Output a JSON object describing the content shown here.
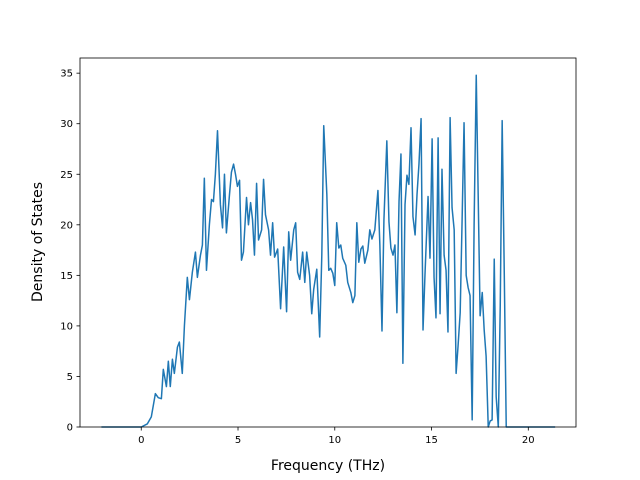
{
  "chart_data": {
    "type": "line",
    "xlabel": "Frequency (THz)",
    "ylabel": "Density of States",
    "color": "#1f77b4",
    "xlim": [
      -3.165,
      22.465
    ],
    "ylim": [
      0,
      36.5
    ],
    "xticks": [
      0,
      5,
      10,
      15,
      20
    ],
    "yticks": [
      0,
      5,
      10,
      15,
      20,
      25,
      30,
      35
    ],
    "x": [
      -2.02,
      0,
      0.31,
      0.52,
      0.73,
      0.88,
      1.04,
      1.14,
      1.3,
      1.4,
      1.5,
      1.61,
      1.71,
      1.87,
      1.97,
      2.12,
      2.23,
      2.38,
      2.49,
      2.64,
      2.8,
      2.9,
      3.06,
      3.16,
      3.26,
      3.37,
      3.52,
      3.63,
      3.73,
      3.83,
      3.94,
      4.09,
      4.2,
      4.3,
      4.4,
      4.56,
      4.66,
      4.77,
      4.87,
      4.97,
      5.08,
      5.18,
      5.28,
      5.44,
      5.54,
      5.65,
      5.75,
      5.85,
      5.96,
      6.06,
      6.22,
      6.32,
      6.42,
      6.58,
      6.68,
      6.79,
      6.89,
      7.05,
      7.2,
      7.36,
      7.51,
      7.62,
      7.72,
      7.88,
      7.98,
      8.08,
      8.19,
      8.34,
      8.45,
      8.55,
      8.7,
      8.81,
      8.91,
      9.07,
      9.22,
      9.33,
      9.43,
      9.59,
      9.69,
      9.79,
      9.9,
      10.0,
      10.1,
      10.21,
      10.31,
      10.41,
      10.57,
      10.67,
      10.83,
      10.93,
      11.04,
      11.14,
      11.24,
      11.35,
      11.45,
      11.55,
      11.71,
      11.81,
      11.92,
      12.07,
      12.23,
      12.33,
      12.44,
      12.54,
      12.69,
      12.8,
      12.9,
      13.01,
      13.11,
      13.21,
      13.32,
      13.42,
      13.52,
      13.63,
      13.73,
      13.83,
      13.94,
      14.04,
      14.15,
      14.25,
      14.35,
      14.46,
      14.56,
      14.66,
      14.82,
      14.92,
      15.03,
      15.13,
      15.23,
      15.34,
      15.44,
      15.54,
      15.65,
      15.75,
      15.85,
      15.96,
      16.06,
      16.17,
      16.27,
      16.37,
      16.48,
      16.58,
      16.68,
      16.79,
      16.89,
      16.99,
      17.1,
      17.2,
      17.31,
      17.41,
      17.51,
      17.62,
      17.72,
      17.82,
      17.93,
      18.03,
      18.13,
      18.24,
      18.34,
      18.45,
      18.55,
      18.65,
      18.76,
      18.86,
      18.96,
      21.35
    ],
    "values": [
      0,
      0,
      0.3,
      1,
      3.3,
      2.9,
      2.8,
      5.7,
      4.0,
      6.5,
      4.0,
      6.7,
      5.3,
      7.9,
      8.4,
      5.3,
      10,
      14.8,
      12.6,
      15.3,
      17.3,
      14.8,
      17,
      18,
      24.6,
      15.5,
      20,
      22.5,
      22.3,
      25,
      29.3,
      22,
      19.7,
      25,
      19.2,
      23,
      25.2,
      26,
      25,
      23.8,
      24.4,
      16.5,
      17.3,
      22.7,
      20,
      22.2,
      20.5,
      17,
      24.1,
      18.5,
      19.5,
      24.5,
      21,
      19.5,
      17,
      20.2,
      16.8,
      17.6,
      11.7,
      17.8,
      11.4,
      19.3,
      16.5,
      19.5,
      20.2,
      15.3,
      14.6,
      17.3,
      14.3,
      17.3,
      15,
      11.2,
      13.6,
      15.6,
      8.9,
      17,
      29.8,
      23,
      15.5,
      15.7,
      15.2,
      14,
      20.2,
      17.7,
      18,
      16.7,
      16,
      14.3,
      13.3,
      12.3,
      13,
      20.2,
      16.3,
      17.6,
      17.9,
      16.2,
      17.5,
      19.5,
      18.6,
      19.5,
      23.4,
      18,
      9.5,
      20.5,
      28.3,
      20.3,
      17.7,
      17,
      18,
      11.3,
      22.3,
      27,
      6.3,
      22,
      24.9,
      24,
      29.6,
      20.8,
      19,
      23,
      26,
      30.5,
      9.6,
      15,
      22.8,
      16.7,
      28.5,
      14.8,
      10.8,
      28.6,
      11.2,
      25.5,
      17,
      15.5,
      9.4,
      30.6,
      21.7,
      19.5,
      5.3,
      8,
      11.3,
      20.5,
      30.1,
      15,
      13.8,
      13,
      0.7,
      20,
      34.8,
      23,
      11,
      13.3,
      9.6,
      7,
      0,
      0.6,
      0.7,
      16.6,
      3,
      0,
      12,
      30.3,
      15,
      0,
      0,
      0
    ]
  }
}
